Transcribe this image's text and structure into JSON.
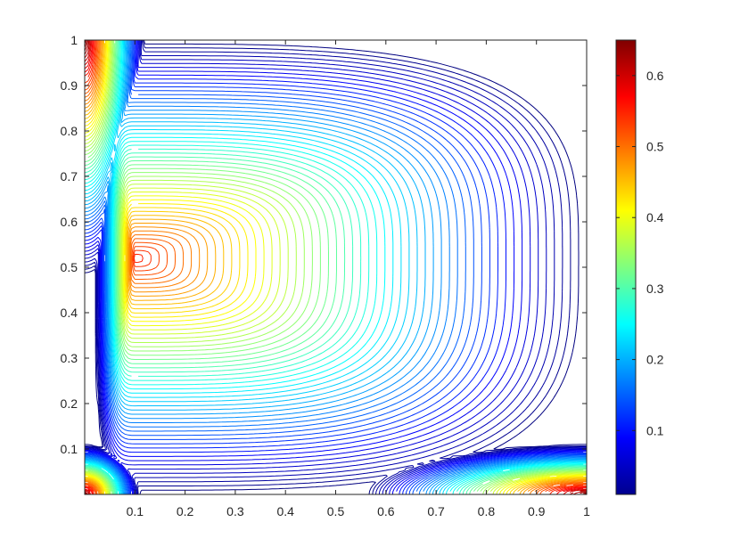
{
  "chart_data": [
    {
      "type": "contour",
      "title": "",
      "xlabel": "",
      "ylabel": "",
      "xlim": [
        0,
        1
      ],
      "ylim": [
        0,
        1
      ],
      "x_ticks": [
        0.1,
        0.2,
        0.3,
        0.4,
        0.5,
        0.6,
        0.7,
        0.8,
        0.9,
        1
      ],
      "x_tick_labels": [
        "0.1",
        "0.2",
        "0.3",
        "0.4",
        "0.5",
        "0.6",
        "0.7",
        "0.8",
        "0.9",
        "1"
      ],
      "y_ticks": [
        0.1,
        0.2,
        0.3,
        0.4,
        0.5,
        0.6,
        0.7,
        0.8,
        0.9,
        1
      ],
      "y_tick_labels": [
        "0.1",
        "0.2",
        "0.3",
        "0.4",
        "0.5",
        "0.6",
        "0.7",
        "0.8",
        "0.9",
        "1"
      ],
      "grid": false,
      "box": true,
      "contour_levels": {
        "count": 65,
        "min": 0.01,
        "max": 0.65
      },
      "colormap": "jet",
      "regions": [
        {
          "name": "main-vortex",
          "center": [
            0.1,
            0.52
          ],
          "max_value": 0.55
        },
        {
          "name": "top-left-corner",
          "center": [
            0.0,
            1.0
          ]
        },
        {
          "name": "bottom-left-corner",
          "center": [
            0.0,
            0.0
          ]
        },
        {
          "name": "bottom-right-corner",
          "center": [
            1.0,
            0.0
          ]
        }
      ]
    },
    {
      "type": "colorbar",
      "clim": [
        0.01,
        0.65
      ],
      "ticks": [
        0.1,
        0.2,
        0.3,
        0.4,
        0.5,
        0.6
      ],
      "tick_labels": [
        "0.1",
        "0.2",
        "0.3",
        "0.4",
        "0.5",
        "0.6"
      ],
      "colormap": "jet",
      "placement": "right"
    }
  ]
}
